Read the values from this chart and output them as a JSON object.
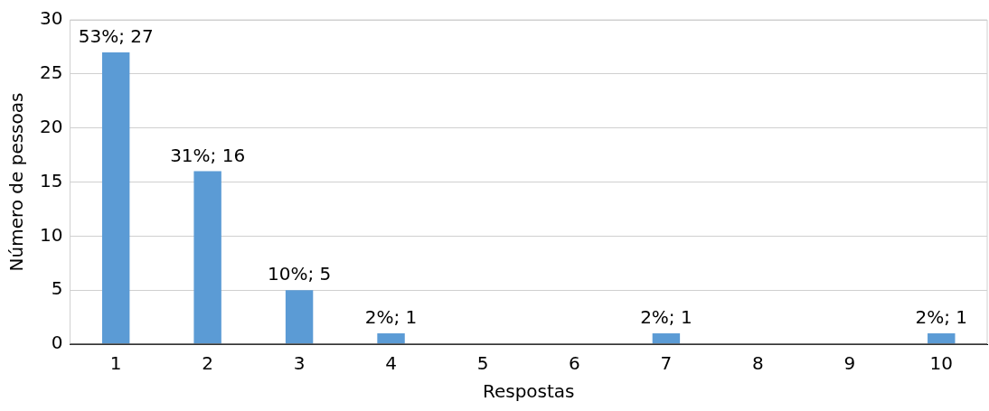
{
  "chart_data": {
    "type": "bar",
    "xlabel": "Respostas",
    "ylabel": "Número de pessoas",
    "categories": [
      "1",
      "2",
      "3",
      "4",
      "5",
      "6",
      "7",
      "8",
      "9",
      "10"
    ],
    "values": [
      27,
      16,
      5,
      1,
      0,
      0,
      1,
      0,
      0,
      1
    ],
    "value_labels": [
      "53%; 27",
      "31%; 16",
      "10%; 5",
      "2%; 1",
      null,
      null,
      "2%; 1",
      null,
      null,
      "2%; 1"
    ],
    "color": "#5b9bd5",
    "ylim": [
      0,
      30
    ],
    "yticks": [
      0,
      5,
      10,
      15,
      20,
      25,
      30
    ],
    "grid": "y",
    "legend": false
  }
}
